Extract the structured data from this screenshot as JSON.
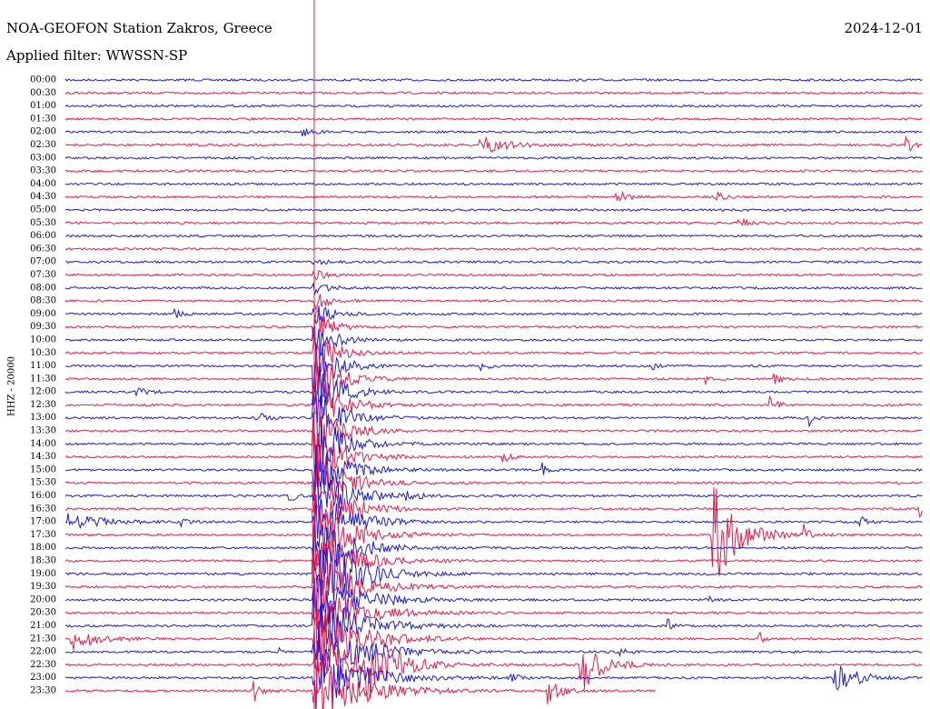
{
  "header": {
    "title": "NOA-GEOFON Station Zakros, Greece",
    "date": "2024-12-01",
    "filter": "Applied filter: WWSSN-SP"
  },
  "axis_label": "HHZ - 20000",
  "rows": [
    "00:00",
    "00:30",
    "01:00",
    "01:30",
    "02:00",
    "02:30",
    "03:00",
    "03:30",
    "04:00",
    "04:30",
    "05:00",
    "05:30",
    "06:00",
    "06:30",
    "07:00",
    "07:30",
    "08:00",
    "08:30",
    "09:00",
    "09:30",
    "10:00",
    "10:30",
    "11:00",
    "11:30",
    "12:00",
    "12:30",
    "13:00",
    "13:30",
    "14:00",
    "14:30",
    "15:00",
    "15:30",
    "16:00",
    "16:30",
    "17:00",
    "17:30",
    "18:00",
    "18:30",
    "19:00",
    "19:30",
    "20:00",
    "20:30",
    "21:00",
    "21:30",
    "22:00",
    "22:30",
    "23:00",
    "23:30"
  ]
}
